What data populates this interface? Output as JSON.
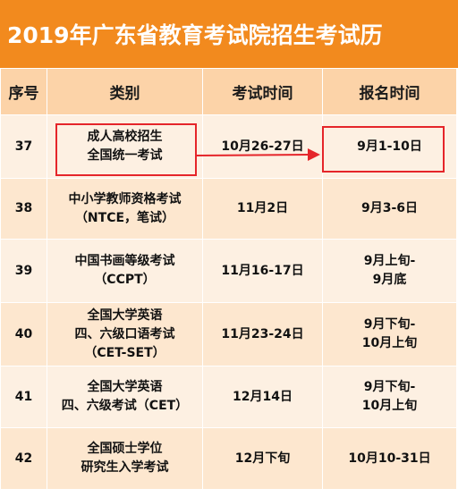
{
  "title": "2019年广东省教育考试院招生考试历",
  "headers": [
    "序号",
    "类别",
    "考试时间",
    "报名时间"
  ],
  "rows": [
    {
      "seq": "37",
      "category": [
        "成人高校招生",
        "全国统一考试"
      ],
      "exam_time": [
        "10月26-27日"
      ],
      "reg_time": [
        "9月1-10日"
      ]
    },
    {
      "seq": "38",
      "category": [
        "中小学教师资格考试",
        "（NTCE，笔试）"
      ],
      "exam_time": [
        "11月2日"
      ],
      "reg_time": [
        "9月3-6日"
      ]
    },
    {
      "seq": "39",
      "category": [
        "中国书画等级考试",
        "（CCPT）"
      ],
      "exam_time": [
        "11月16-17日"
      ],
      "reg_time": [
        "9月上旬-",
        "9月底"
      ]
    },
    {
      "seq": "40",
      "category": [
        "全国大学英语",
        "四、六级口语考试",
        "（CET-SET）"
      ],
      "exam_time": [
        "11月23-24日"
      ],
      "reg_time": [
        "9月下旬-",
        "10月上旬"
      ]
    },
    {
      "seq": "41",
      "category": [
        "全国大学英语",
        "四、六级考试（CET）"
      ],
      "exam_time": [
        "12月14日"
      ],
      "reg_time": [
        "9月下旬-",
        "10月上旬"
      ]
    },
    {
      "seq": "42",
      "category": [
        "全国硕士学位",
        "研究生入学考试"
      ],
      "exam_time": [
        "12月下旬"
      ],
      "reg_time": [
        "10月10-31日"
      ]
    }
  ],
  "colors": {
    "title_bg": "#f28a1e",
    "header_bg": "#fcd3a8",
    "row_light": "#fdf0e2",
    "row_dark": "#fde7cf",
    "highlight": "#e5252a"
  }
}
